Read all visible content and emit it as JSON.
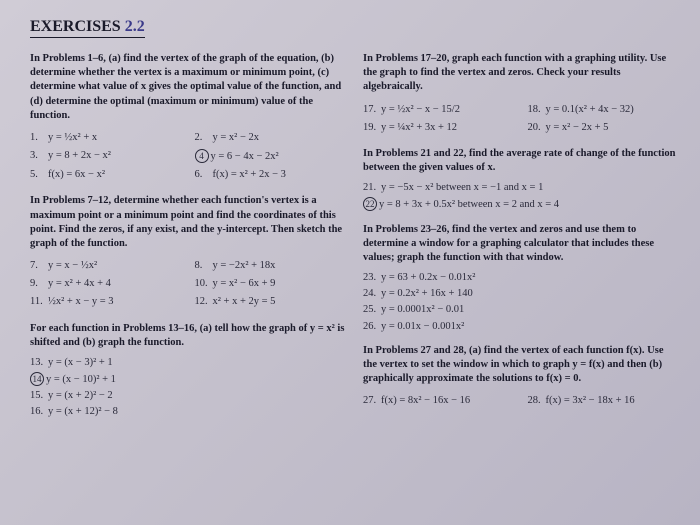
{
  "colors": {
    "background": "#c8c4d0",
    "text": "#2a2a3a",
    "heading": "#1a1a2a",
    "accent": "#3a3a8a"
  },
  "typography": {
    "body_fontsize": 10.5,
    "title_fontsize": 16,
    "font_family": "Georgia, Times New Roman, serif"
  },
  "title": {
    "word": "EXERCISES",
    "num": "2.2"
  },
  "left": {
    "instr1": "In Problems 1–6, (a) find the vertex of the graph of the equation, (b) determine whether the vertex is a maximum or minimum point, (c) determine what value of x gives the optimal value of the function, and (d) determine the optimal (maximum or minimum) value of the function.",
    "p1to6": [
      {
        "n": "1.",
        "eq": "y = ½x² + x"
      },
      {
        "n": "2.",
        "eq": "y = x² − 2x"
      },
      {
        "n": "3.",
        "eq": "y = 8 + 2x − x²"
      },
      {
        "n": "4.",
        "eq": "y = 6 − 4x − 2x²",
        "circled": true
      },
      {
        "n": "5.",
        "eq": "f(x) = 6x − x²"
      },
      {
        "n": "6.",
        "eq": "f(x) = x² + 2x − 3"
      }
    ],
    "instr2": "In Problems 7–12, determine whether each function's vertex is a maximum point or a minimum point and find the coordinates of this point. Find the zeros, if any exist, and the y-intercept. Then sketch the graph of the function.",
    "p7to12": [
      {
        "n": "7.",
        "eq": "y = x − ½x²"
      },
      {
        "n": "8.",
        "eq": "y = −2x² + 18x"
      },
      {
        "n": "9.",
        "eq": "y = x² + 4x + 4"
      },
      {
        "n": "10.",
        "eq": "y = x² − 6x + 9"
      },
      {
        "n": "11.",
        "eq": "½x² + x − y = 3"
      },
      {
        "n": "12.",
        "eq": "x² + x + 2y = 5"
      }
    ],
    "instr3": "For each function in Problems 13–16, (a) tell how the graph of y = x² is shifted and (b) graph the function.",
    "p13to16": [
      {
        "n": "13.",
        "eq": "y = (x − 3)² + 1"
      },
      {
        "n": "14.",
        "eq": "y = (x − 10)² + 1",
        "circled": true
      },
      {
        "n": "15.",
        "eq": "y = (x + 2)² − 2"
      },
      {
        "n": "16.",
        "eq": "y = (x + 12)² − 8"
      }
    ]
  },
  "right": {
    "instr1": "In Problems 17–20, graph each function with a graphing utility. Use the graph to find the vertex and zeros. Check your results algebraically.",
    "p17to20": [
      {
        "n": "17.",
        "eq": "y = ½x² − x − 15/2"
      },
      {
        "n": "18.",
        "eq": "y = 0.1(x² + 4x − 32)"
      },
      {
        "n": "19.",
        "eq": "y = ¼x² + 3x + 12"
      },
      {
        "n": "20.",
        "eq": "y = x² − 2x + 5"
      }
    ],
    "instr2": "In Problems 21 and 22, find the average rate of change of the function between the given values of x.",
    "p21to22": [
      {
        "n": "21.",
        "eq": "y = −5x − x² between x = −1 and x = 1"
      },
      {
        "n": "22.",
        "eq": "y = 8 + 3x + 0.5x² between x = 2 and x = 4",
        "circled": true
      }
    ],
    "instr3": "In Problems 23–26, find the vertex and zeros and use them to determine a window for a graphing calculator that includes these values; graph the function with that window.",
    "p23to26": [
      {
        "n": "23.",
        "eq": "y = 63 + 0.2x − 0.01x²"
      },
      {
        "n": "24.",
        "eq": "y = 0.2x² + 16x + 140"
      },
      {
        "n": "25.",
        "eq": "y = 0.0001x² − 0.01"
      },
      {
        "n": "26.",
        "eq": "y = 0.01x − 0.001x²"
      }
    ],
    "instr4": "In Problems 27 and 28, (a) find the vertex of each function f(x). Use the vertex to set the window in which to graph y = f(x) and then (b) graphically approximate the solutions to f(x) = 0.",
    "p27to28": [
      {
        "n": "27.",
        "eq": "f(x) = 8x² − 16x − 16"
      },
      {
        "n": "28.",
        "eq": "f(x) = 3x² − 18x + 16"
      }
    ]
  }
}
